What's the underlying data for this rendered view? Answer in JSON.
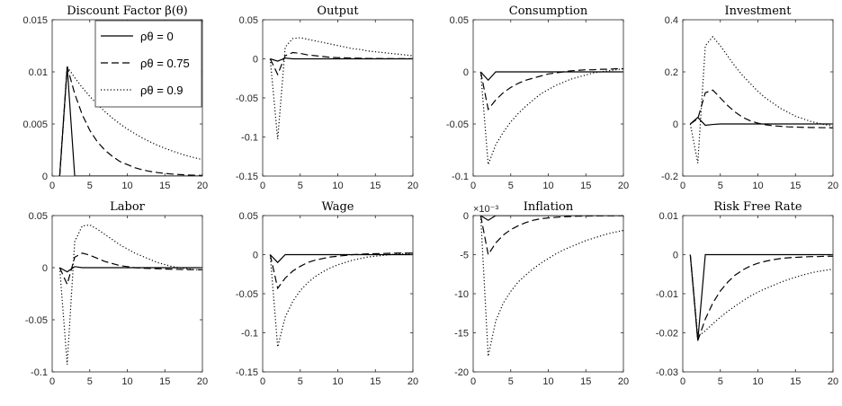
{
  "chart_data": [
    {
      "type": "line",
      "title": "Discount Factor β(θ)",
      "xlim": [
        0,
        20
      ],
      "ylim": [
        0,
        0.015
      ],
      "xticks": [
        0,
        5,
        10,
        15,
        20
      ],
      "yticks": [
        0,
        0.005,
        0.01,
        0.015
      ],
      "yticklabels": [
        "0",
        "0.005",
        "0.01",
        "0.015"
      ],
      "legend": {
        "placement": "top-right",
        "entries": [
          "ρθ = 0",
          "ρθ = 0.75",
          "ρθ = 0.9"
        ]
      },
      "series": [
        {
          "name": "ρθ = 0",
          "style": "solid",
          "x": [
            1,
            2,
            3,
            4,
            20
          ],
          "y": [
            0,
            0.0105,
            0,
            0,
            0
          ]
        },
        {
          "name": "ρθ = 0.75",
          "style": "dashed",
          "x": [
            1,
            2,
            3,
            4,
            5,
            6,
            7,
            8,
            9,
            10,
            11,
            12,
            13,
            14,
            15,
            16,
            17,
            18,
            19,
            20
          ],
          "y": [
            0,
            0.0105,
            0.0079,
            0.0059,
            0.0044,
            0.0033,
            0.0025,
            0.0019,
            0.0014,
            0.0011,
            0.0008,
            0.0006,
            0.00045,
            0.00034,
            0.00025,
            0.00019,
            0.00014,
            0.0001,
            8e-05,
            6e-05
          ]
        },
        {
          "name": "ρθ = 0.9",
          "style": "dotted",
          "x": [
            1,
            2,
            3,
            4,
            5,
            6,
            7,
            8,
            9,
            10,
            11,
            12,
            13,
            14,
            15,
            16,
            17,
            18,
            19,
            20
          ],
          "y": [
            0,
            0.0105,
            0.00945,
            0.0085,
            0.00765,
            0.00689,
            0.0062,
            0.00558,
            0.00502,
            0.00452,
            0.00407,
            0.00366,
            0.00329,
            0.00296,
            0.00267,
            0.0024,
            0.00216,
            0.00194,
            0.00175,
            0.00158
          ]
        }
      ]
    },
    {
      "type": "line",
      "title": "Output",
      "xlim": [
        0,
        20
      ],
      "ylim": [
        -0.15,
        0.05
      ],
      "xticks": [
        0,
        5,
        10,
        15,
        20
      ],
      "yticks": [
        -0.15,
        -0.1,
        -0.05,
        0,
        0.05
      ],
      "yticklabels": [
        "-0.15",
        "-0.1",
        "-0.05",
        "0",
        "0.05"
      ],
      "series": [
        {
          "name": "ρθ = 0",
          "style": "solid",
          "x": [
            1,
            2,
            3,
            4,
            20
          ],
          "y": [
            0,
            -0.003,
            0.001,
            0,
            0
          ]
        },
        {
          "name": "ρθ = 0.75",
          "style": "dashed",
          "x": [
            1,
            2,
            3,
            4,
            5,
            6,
            7,
            8,
            9,
            10,
            12,
            14,
            16,
            18,
            20
          ],
          "y": [
            0,
            -0.02,
            0.004,
            0.008,
            0.007,
            0.005,
            0.004,
            0.003,
            0.002,
            0.0015,
            0.001,
            0.0005,
            0.0003,
            0.0002,
            0.0001
          ]
        },
        {
          "name": "ρθ = 0.9",
          "style": "dotted",
          "x": [
            1,
            2,
            3,
            4,
            5,
            6,
            7,
            8,
            9,
            10,
            11,
            12,
            13,
            14,
            15,
            16,
            17,
            18,
            19,
            20
          ],
          "y": [
            0,
            -0.103,
            0.015,
            0.026,
            0.027,
            0.025,
            0.023,
            0.021,
            0.019,
            0.017,
            0.015,
            0.013,
            0.012,
            0.01,
            0.009,
            0.008,
            0.007,
            0.006,
            0.005,
            0.004
          ]
        }
      ]
    },
    {
      "type": "line",
      "title": "Consumption",
      "xlim": [
        0,
        20
      ],
      "ylim": [
        -0.1,
        0.05
      ],
      "xticks": [
        0,
        5,
        10,
        15,
        20
      ],
      "yticks": [
        -0.1,
        -0.05,
        0,
        0.05
      ],
      "yticklabels": [
        "-0.1",
        "-0.05",
        "0",
        "0.05"
      ],
      "series": [
        {
          "name": "ρθ = 0",
          "style": "solid",
          "x": [
            1,
            2,
            3,
            20
          ],
          "y": [
            0,
            -0.008,
            0,
            0
          ]
        },
        {
          "name": "ρθ = 0.75",
          "style": "dashed",
          "x": [
            1,
            2,
            3,
            4,
            5,
            6,
            7,
            8,
            9,
            10,
            11,
            12,
            13,
            14,
            15,
            16,
            17,
            18,
            19,
            20
          ],
          "y": [
            0,
            -0.036,
            -0.027,
            -0.02,
            -0.015,
            -0.011,
            -0.008,
            -0.006,
            -0.004,
            -0.002,
            -0.001,
            0,
            0.001,
            0.0015,
            0.002,
            0.002,
            0.0025,
            0.0025,
            0.003,
            0.003
          ]
        },
        {
          "name": "ρθ = 0.9",
          "style": "dotted",
          "x": [
            1,
            2,
            3,
            4,
            5,
            6,
            7,
            8,
            9,
            10,
            11,
            12,
            13,
            14,
            15,
            16,
            17,
            18,
            19,
            20
          ],
          "y": [
            0,
            -0.089,
            -0.07,
            -0.058,
            -0.048,
            -0.04,
            -0.033,
            -0.027,
            -0.021,
            -0.017,
            -0.013,
            -0.01,
            -0.007,
            -0.005,
            -0.003,
            -0.001,
            0,
            0.001,
            0.002,
            0.003
          ]
        }
      ]
    },
    {
      "type": "line",
      "title": "Investment",
      "xlim": [
        0,
        20
      ],
      "ylim": [
        -0.2,
        0.4
      ],
      "xticks": [
        0,
        5,
        10,
        15,
        20
      ],
      "yticks": [
        -0.2,
        0,
        0.2,
        0.4
      ],
      "yticklabels": [
        "-0.2",
        "0",
        "0.2",
        "0.4"
      ],
      "series": [
        {
          "name": "ρθ = 0",
          "style": "solid",
          "x": [
            1,
            2,
            3,
            4,
            5,
            20
          ],
          "y": [
            0,
            0.025,
            -0.005,
            -0.002,
            0,
            0
          ]
        },
        {
          "name": "ρθ = 0.75",
          "style": "dashed",
          "x": [
            1,
            2,
            3,
            4,
            5,
            6,
            7,
            8,
            9,
            10,
            11,
            12,
            14,
            16,
            18,
            20
          ],
          "y": [
            0,
            0.02,
            0.12,
            0.13,
            0.1,
            0.07,
            0.045,
            0.025,
            0.012,
            0.003,
            -0.003,
            -0.007,
            -0.011,
            -0.013,
            -0.014,
            -0.015
          ]
        },
        {
          "name": "ρθ = 0.9",
          "style": "dotted",
          "x": [
            1,
            2,
            3,
            4,
            5,
            6,
            7,
            8,
            9,
            10,
            11,
            12,
            13,
            14,
            15,
            16,
            17,
            18,
            19,
            20
          ],
          "y": [
            0,
            -0.15,
            0.3,
            0.335,
            0.3,
            0.26,
            0.22,
            0.185,
            0.155,
            0.125,
            0.1,
            0.08,
            0.06,
            0.045,
            0.03,
            0.02,
            0.01,
            0.003,
            -0.003,
            -0.008
          ]
        }
      ]
    },
    {
      "type": "line",
      "title": "Labor",
      "xlim": [
        0,
        20
      ],
      "ylim": [
        -0.1,
        0.05
      ],
      "xticks": [
        0,
        5,
        10,
        15,
        20
      ],
      "yticks": [
        -0.1,
        -0.05,
        0,
        0.05
      ],
      "yticklabels": [
        "-0.1",
        "-0.05",
        "0",
        "0.05"
      ],
      "series": [
        {
          "name": "ρθ = 0",
          "style": "solid",
          "x": [
            1,
            2,
            3,
            4,
            20
          ],
          "y": [
            0,
            -0.004,
            0.001,
            0,
            0
          ]
        },
        {
          "name": "ρθ = 0.75",
          "style": "dashed",
          "x": [
            1,
            2,
            3,
            4,
            5,
            6,
            7,
            8,
            9,
            10,
            11,
            12,
            14,
            16,
            18,
            20
          ],
          "y": [
            0,
            -0.016,
            0.01,
            0.014,
            0.012,
            0.009,
            0.006,
            0.004,
            0.002,
            0.001,
            0,
            -0.0005,
            -0.001,
            -0.0015,
            -0.0018,
            -0.002
          ]
        },
        {
          "name": "ρθ = 0.9",
          "style": "dotted",
          "x": [
            1,
            2,
            3,
            4,
            5,
            6,
            7,
            8,
            9,
            10,
            11,
            12,
            13,
            14,
            15,
            16,
            17,
            18,
            19,
            20
          ],
          "y": [
            0,
            -0.093,
            0.025,
            0.04,
            0.041,
            0.037,
            0.032,
            0.027,
            0.022,
            0.018,
            0.014,
            0.011,
            0.008,
            0.005,
            0.003,
            0.001,
            0,
            -0.001,
            -0.002,
            -0.002
          ]
        }
      ]
    },
    {
      "type": "line",
      "title": "Wage",
      "xlim": [
        0,
        20
      ],
      "ylim": [
        -0.15,
        0.05
      ],
      "xticks": [
        0,
        5,
        10,
        15,
        20
      ],
      "yticks": [
        -0.15,
        -0.1,
        -0.05,
        0,
        0.05
      ],
      "yticklabels": [
        "-0.15",
        "-0.1",
        "-0.05",
        "0",
        "0.05"
      ],
      "series": [
        {
          "name": "ρθ = 0",
          "style": "solid",
          "x": [
            1,
            2,
            3,
            20
          ],
          "y": [
            0,
            -0.01,
            0,
            0
          ]
        },
        {
          "name": "ρθ = 0.75",
          "style": "dashed",
          "x": [
            1,
            2,
            3,
            4,
            5,
            6,
            7,
            8,
            9,
            10,
            11,
            12,
            14,
            16,
            18,
            20
          ],
          "y": [
            0,
            -0.043,
            -0.03,
            -0.021,
            -0.015,
            -0.01,
            -0.007,
            -0.005,
            -0.003,
            -0.002,
            -0.001,
            0,
            0.001,
            0.0015,
            0.002,
            0.002
          ]
        },
        {
          "name": "ρθ = 0.9",
          "style": "dotted",
          "x": [
            1,
            2,
            3,
            4,
            5,
            6,
            7,
            8,
            9,
            10,
            11,
            12,
            13,
            14,
            15,
            16,
            17,
            18,
            19,
            20
          ],
          "y": [
            0,
            -0.118,
            -0.08,
            -0.06,
            -0.046,
            -0.036,
            -0.028,
            -0.022,
            -0.017,
            -0.013,
            -0.01,
            -0.007,
            -0.005,
            -0.003,
            -0.002,
            -0.001,
            0,
            0.001,
            0.001,
            0.002
          ]
        }
      ]
    },
    {
      "type": "line",
      "title": "Inflation",
      "scale_label": "×10⁻³",
      "xlim": [
        0,
        20
      ],
      "ylim": [
        -20,
        0
      ],
      "xticks": [
        0,
        5,
        10,
        15,
        20
      ],
      "yticks": [
        -20,
        -15,
        -10,
        -5,
        0
      ],
      "yticklabels": [
        "-20",
        "-15",
        "-10",
        "-5",
        "0"
      ],
      "series": [
        {
          "name": "ρθ = 0",
          "style": "solid",
          "x": [
            1,
            2,
            3,
            20
          ],
          "y": [
            0,
            -0.6,
            0,
            0
          ]
        },
        {
          "name": "ρθ = 0.75",
          "style": "dashed",
          "x": [
            1,
            2,
            3,
            4,
            5,
            6,
            7,
            8,
            9,
            10,
            12,
            14,
            16,
            18,
            20
          ],
          "y": [
            0,
            -5,
            -3.5,
            -2.5,
            -1.8,
            -1.3,
            -0.9,
            -0.6,
            -0.4,
            -0.3,
            -0.15,
            -0.08,
            -0.05,
            -0.03,
            -0.02
          ]
        },
        {
          "name": "ρθ = 0.9",
          "style": "dotted",
          "x": [
            1,
            2,
            3,
            4,
            5,
            6,
            7,
            8,
            9,
            10,
            11,
            12,
            13,
            14,
            15,
            16,
            17,
            18,
            19,
            20
          ],
          "y": [
            0,
            -18,
            -13.5,
            -11.2,
            -9.7,
            -8.5,
            -7.6,
            -6.8,
            -6.1,
            -5.5,
            -4.9,
            -4.4,
            -4,
            -3.6,
            -3.2,
            -2.9,
            -2.6,
            -2.3,
            -2.1,
            -1.9
          ]
        }
      ]
    },
    {
      "type": "line",
      "title": "Risk Free Rate",
      "xlim": [
        0,
        20
      ],
      "ylim": [
        -0.03,
        0.01
      ],
      "xticks": [
        0,
        5,
        10,
        15,
        20
      ],
      "yticks": [
        -0.03,
        -0.02,
        -0.01,
        0,
        0.01
      ],
      "yticklabels": [
        "-0.03",
        "-0.02",
        "-0.01",
        "0",
        "0.01"
      ],
      "series": [
        {
          "name": "ρθ = 0",
          "style": "solid",
          "x": [
            1,
            2,
            3,
            20
          ],
          "y": [
            0,
            -0.022,
            0,
            0
          ]
        },
        {
          "name": "ρθ = 0.75",
          "style": "dashed",
          "x": [
            1,
            2,
            3,
            4,
            5,
            6,
            7,
            8,
            9,
            10,
            11,
            12,
            13,
            14,
            15,
            16,
            17,
            18,
            19,
            20
          ],
          "y": [
            0,
            -0.022,
            -0.0165,
            -0.0124,
            -0.0093,
            -0.007,
            -0.0052,
            -0.0039,
            -0.0029,
            -0.0022,
            -0.0017,
            -0.0013,
            -0.001,
            -0.0008,
            -0.0007,
            -0.0006,
            -0.0005,
            -0.0005,
            -0.0004,
            -0.0004
          ]
        },
        {
          "name": "ρθ = 0.9",
          "style": "dotted",
          "x": [
            1,
            2,
            3,
            4,
            5,
            6,
            7,
            8,
            9,
            10,
            11,
            12,
            13,
            14,
            15,
            16,
            17,
            18,
            19,
            20
          ],
          "y": [
            0,
            -0.021,
            -0.0195,
            -0.0177,
            -0.016,
            -0.0145,
            -0.0131,
            -0.0118,
            -0.0106,
            -0.0096,
            -0.0087,
            -0.0079,
            -0.0071,
            -0.0064,
            -0.0058,
            -0.0052,
            -0.0047,
            -0.0043,
            -0.004,
            -0.0037
          ]
        }
      ]
    }
  ]
}
